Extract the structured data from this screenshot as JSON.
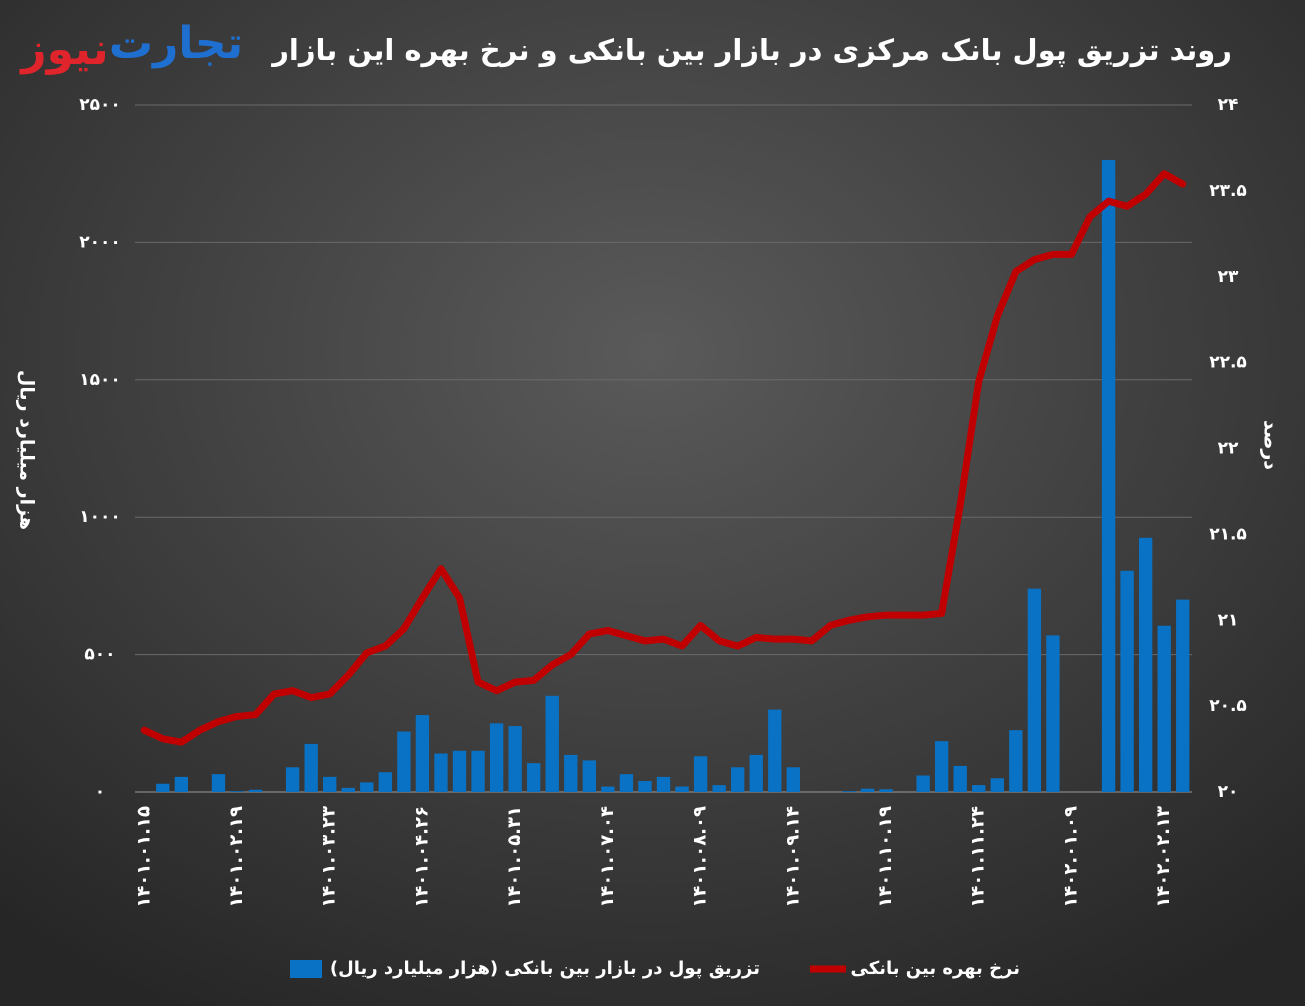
{
  "logo": {
    "left": "نیوز",
    "right": "تجارت"
  },
  "chart_data": {
    "type": "bar-line",
    "title": "روند تزریق پول بانک مرکزی در بازار بین بانکی و نرخ بهره این بازار",
    "ylabel": "هزار میلیارد ریال",
    "y2label": "درصد",
    "categories": [
      "۱۴۰۱.۰۱.۱۵",
      null,
      null,
      null,
      null,
      "۱۴۰۱.۰۲.۱۹",
      null,
      null,
      null,
      null,
      "۱۴۰۱.۰۳.۲۳",
      null,
      null,
      null,
      null,
      "۱۴۰۱.۰۴.۲۶",
      null,
      null,
      null,
      null,
      "۱۴۰۱.۰۵.۳۱",
      null,
      null,
      null,
      null,
      "۱۴۰۱.۰۷.۰۴",
      null,
      null,
      null,
      null,
      "۱۴۰۱.۰۸.۰۹",
      null,
      null,
      null,
      null,
      "۱۴۰۱.۰۹.۱۴",
      null,
      null,
      null,
      null,
      "۱۴۰۱.۱۰.۱۹",
      null,
      null,
      null,
      null,
      "۱۴۰۱.۱۱.۲۴",
      null,
      null,
      null,
      null,
      "۱۴۰۲.۰۱.۰۹",
      null,
      null,
      null,
      null,
      "۱۴۰۲.۰۲.۱۳",
      null
    ],
    "series": [
      {
        "name": "تزریق پول در بازار بین بانکی (هزار میلیارد ریال)",
        "color": "#0a72c4",
        "axis": "y",
        "kind": "bar",
        "values": [
          0,
          30,
          55,
          0,
          65,
          3,
          8,
          0,
          90,
          175,
          55,
          15,
          35,
          72,
          220,
          280,
          140,
          150,
          150,
          250,
          240,
          105,
          350,
          135,
          115,
          20,
          65,
          40,
          55,
          20,
          130,
          25,
          90,
          135,
          300,
          90,
          0,
          0,
          3,
          12,
          10,
          0,
          60,
          185,
          95,
          25,
          50,
          225,
          740,
          570,
          0,
          0,
          2300,
          805,
          925,
          605,
          700
        ]
      },
      {
        "name": "نرخ بهره بین بانکی",
        "color": "#c00000",
        "axis": "y2",
        "kind": "line",
        "values": [
          20.36,
          20.31,
          20.29,
          20.36,
          20.41,
          20.44,
          20.45,
          20.57,
          20.59,
          20.55,
          20.57,
          20.68,
          20.81,
          20.85,
          20.95,
          21.13,
          21.3,
          21.13,
          20.64,
          20.59,
          20.64,
          20.65,
          20.74,
          20.8,
          20.92,
          20.94,
          20.91,
          20.88,
          20.89,
          20.85,
          20.97,
          20.88,
          20.85,
          20.9,
          20.89,
          20.89,
          20.88,
          20.97,
          21.0,
          21.02,
          21.03,
          21.03,
          21.03,
          21.04,
          21.67,
          22.39,
          22.77,
          23.03,
          23.1,
          23.13,
          23.13,
          23.35,
          23.44,
          23.41,
          23.48,
          23.6,
          23.54
        ]
      }
    ],
    "ylim": [
      0,
      2500
    ],
    "yticks": [
      {
        "value": 0,
        "label": "۰"
      },
      {
        "value": 500,
        "label": "۵۰۰"
      },
      {
        "value": 1000,
        "label": "۱۰۰۰"
      },
      {
        "value": 1500,
        "label": "۱۵۰۰"
      },
      {
        "value": 2000,
        "label": "۲۰۰۰"
      },
      {
        "value": 2500,
        "label": "۲۵۰۰"
      }
    ],
    "y2lim": [
      20,
      24
    ],
    "y2ticks": [
      {
        "value": 20,
        "label": "۲۰"
      },
      {
        "value": 20.5,
        "label": "۲۰.۵"
      },
      {
        "value": 21,
        "label": "۲۱"
      },
      {
        "value": 21.5,
        "label": "۲۱.۵"
      },
      {
        "value": 22,
        "label": "۲۲"
      },
      {
        "value": 22.5,
        "label": "۲۲.۵"
      },
      {
        "value": 23,
        "label": "۲۳"
      },
      {
        "value": 23.5,
        "label": "۲۳.۵"
      },
      {
        "value": 24,
        "label": "۲۴"
      }
    ],
    "grid": true,
    "legend": "bottom"
  }
}
